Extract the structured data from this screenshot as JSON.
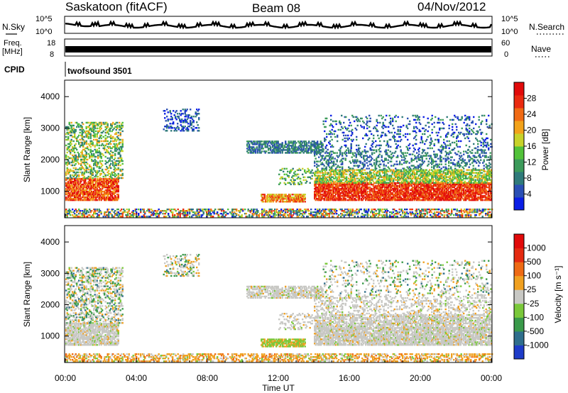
{
  "header": {
    "station": "Saskatoon (fitACF)",
    "beam": "Beam 08",
    "date": "04/Nov/2012"
  },
  "status_panels": {
    "nsky_label": "N.Sky",
    "nsky_ticks": [
      "10^5",
      "10^0"
    ],
    "nsearch_label": "N.Search",
    "nsearch_ticks": [
      "10^5",
      "10^0"
    ],
    "freq_label_1": "Freq.",
    "freq_label_2": "[MHz]",
    "freq_ticks": [
      "18",
      "8"
    ],
    "nave_label": "Nave",
    "nave_ticks": [
      "60",
      "0"
    ],
    "cpid_label": "CPID",
    "cpid_value": "twofsound 3501"
  },
  "chart_data": [
    {
      "type": "heatmap",
      "parameter": "Power",
      "ylabel": "Slant Range [km]",
      "yticks": [
        "4000",
        "3000",
        "2000",
        "1000"
      ],
      "ylim": [
        180,
        4500
      ],
      "xlim": [
        0,
        24
      ],
      "colorbar_label": "Power [dB]",
      "colorbar_ticks": [
        "28",
        "24",
        "20",
        "16",
        "12",
        "8",
        "4"
      ],
      "colorbar_colors": [
        "#0a1ee6",
        "#2a4fb4",
        "#2f7a7a",
        "#3c9a5a",
        "#52c23a",
        "#c7d22a",
        "#f2a21a",
        "#f06a14",
        "#ea2a10",
        "#e10a0a"
      ]
    },
    {
      "type": "heatmap",
      "parameter": "Velocity",
      "ylabel": "Slant Range [km]",
      "yticks": [
        "4000",
        "3000",
        "2000",
        "1000"
      ],
      "ylim": [
        180,
        4500
      ],
      "xlim": [
        0,
        24
      ],
      "xticks": [
        "00:00",
        "04:00",
        "08:00",
        "12:00",
        "16:00",
        "20:00",
        "00:00"
      ],
      "xlabel": "Time UT",
      "colorbar_label": "Velocity [m s⁻¹]",
      "colorbar_ticks": [
        "1000",
        "500",
        "100",
        "25",
        "-25",
        "-100",
        "-500",
        "-1000"
      ],
      "colorbar_colors": [
        "#1e3cc8",
        "#2f6e8c",
        "#3a9a4a",
        "#7ac83a",
        "#c8c8c4",
        "#f0a020",
        "#ee6a14",
        "#e42a10",
        "#e10a0a"
      ]
    }
  ]
}
